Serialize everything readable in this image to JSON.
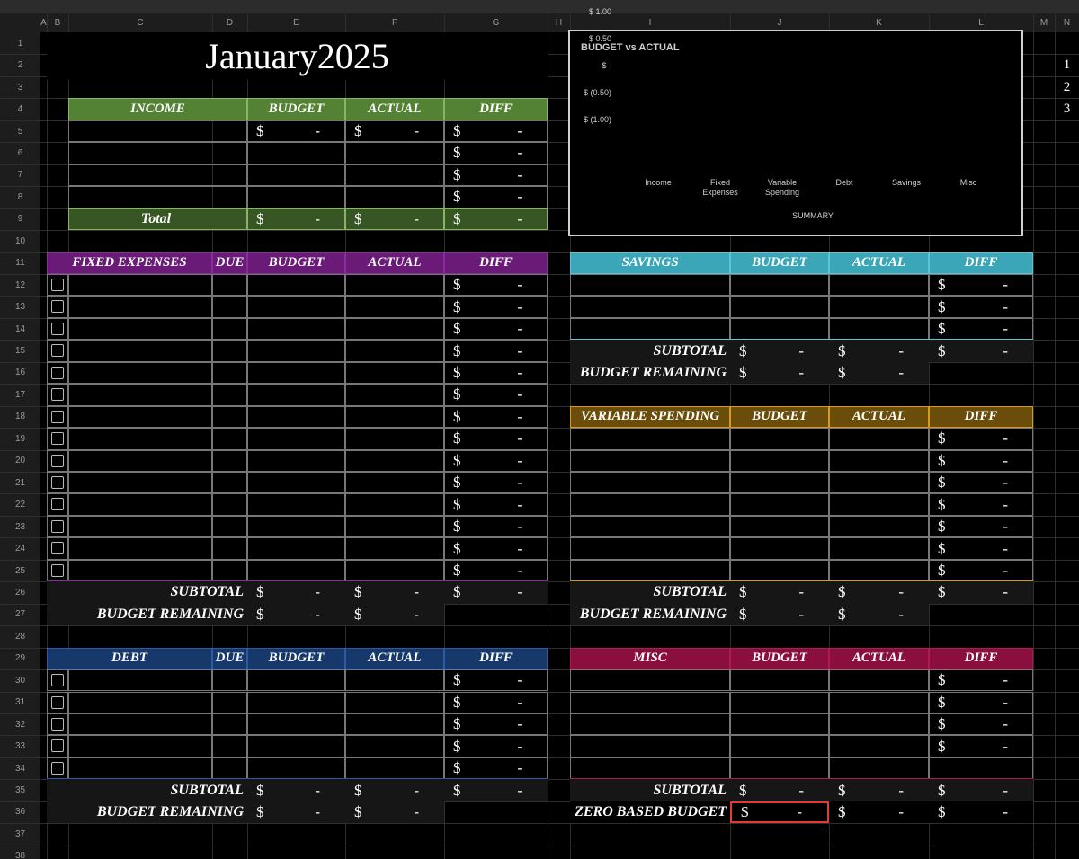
{
  "column_headers": [
    "A",
    "B",
    "C",
    "D",
    "E",
    "F",
    "G",
    "H",
    "I",
    "J",
    "K",
    "L",
    "M",
    "N"
  ],
  "row_numbers": [
    1,
    2,
    3,
    4,
    5,
    6,
    7,
    8,
    9,
    10,
    11,
    12,
    13,
    14,
    15,
    16,
    17,
    18,
    19,
    20,
    21,
    22,
    23,
    24,
    25,
    26,
    27,
    28,
    29,
    30,
    31,
    32,
    33,
    34,
    35,
    36,
    37,
    38
  ],
  "title": "January2025",
  "side_notes": [
    1,
    2,
    3
  ],
  "sections": {
    "income": {
      "header": [
        "INCOME",
        "BUDGET",
        "ACTUAL",
        "DIFF"
      ],
      "rows": [
        [
          null,
          [
            "$",
            "-"
          ],
          [
            "$",
            "-"
          ],
          [
            "$",
            "-"
          ]
        ],
        [
          null,
          null,
          null,
          [
            "$",
            "-"
          ]
        ],
        [
          null,
          null,
          null,
          [
            "$",
            "-"
          ]
        ],
        [
          null,
          null,
          null,
          [
            "$",
            "-"
          ]
        ]
      ],
      "total": {
        "label": "Total",
        "cells": [
          [
            "$",
            "-"
          ],
          [
            "$",
            "-"
          ],
          [
            "$",
            "-"
          ]
        ]
      }
    },
    "fixed": {
      "header": [
        "FIXED EXPENSES",
        "DUE",
        "BUDGET",
        "ACTUAL",
        "DIFF"
      ],
      "rows": [
        [
          null,
          null,
          null,
          null,
          [
            "$",
            "-"
          ]
        ],
        [
          null,
          null,
          null,
          null,
          [
            "$",
            "-"
          ]
        ],
        [
          null,
          null,
          null,
          null,
          [
            "$",
            "-"
          ]
        ],
        [
          null,
          null,
          null,
          null,
          [
            "$",
            "-"
          ]
        ],
        [
          null,
          null,
          null,
          null,
          [
            "$",
            "-"
          ]
        ],
        [
          null,
          null,
          null,
          null,
          [
            "$",
            "-"
          ]
        ],
        [
          null,
          null,
          null,
          null,
          [
            "$",
            "-"
          ]
        ],
        [
          null,
          null,
          null,
          null,
          [
            "$",
            "-"
          ]
        ],
        [
          null,
          null,
          null,
          null,
          [
            "$",
            "-"
          ]
        ],
        [
          null,
          null,
          null,
          null,
          [
            "$",
            "-"
          ]
        ],
        [
          null,
          null,
          null,
          null,
          [
            "$",
            "-"
          ]
        ],
        [
          null,
          null,
          null,
          null,
          [
            "$",
            "-"
          ]
        ],
        [
          null,
          null,
          null,
          null,
          [
            "$",
            "-"
          ]
        ],
        [
          null,
          null,
          null,
          null,
          [
            "$",
            "-"
          ]
        ]
      ],
      "subtotal": {
        "label": "SUBTOTAL",
        "cells": [
          [
            "$",
            "-"
          ],
          [
            "$",
            "-"
          ],
          [
            "$",
            "-"
          ]
        ]
      },
      "remaining": {
        "label": "BUDGET REMAINING",
        "cells": [
          [
            "$",
            "-"
          ],
          [
            "$",
            "-"
          ]
        ]
      }
    },
    "debt": {
      "header": [
        "DEBT",
        "DUE",
        "BUDGET",
        "ACTUAL",
        "DIFF"
      ],
      "rows": [
        [
          null,
          null,
          null,
          null,
          [
            "$",
            "-"
          ]
        ],
        [
          null,
          null,
          null,
          null,
          [
            "$",
            "-"
          ]
        ],
        [
          null,
          null,
          null,
          null,
          [
            "$",
            "-"
          ]
        ],
        [
          null,
          null,
          null,
          null,
          [
            "$",
            "-"
          ]
        ],
        [
          null,
          null,
          null,
          null,
          [
            "$",
            "-"
          ]
        ]
      ],
      "subtotal": {
        "label": "SUBTOTAL",
        "cells": [
          [
            "$",
            "-"
          ],
          [
            "$",
            "-"
          ],
          [
            "$",
            "-"
          ]
        ]
      },
      "remaining": {
        "label": "BUDGET REMAINING",
        "cells": [
          [
            "$",
            "-"
          ],
          [
            "$",
            "-"
          ]
        ]
      }
    },
    "savings": {
      "header": [
        "SAVINGS",
        "BUDGET",
        "ACTUAL",
        "DIFF"
      ],
      "rows": [
        [
          null,
          null,
          null,
          [
            "$",
            "-"
          ]
        ],
        [
          null,
          null,
          null,
          [
            "$",
            "-"
          ]
        ],
        [
          null,
          null,
          null,
          [
            "$",
            "-"
          ]
        ]
      ],
      "subtotal": {
        "label": "SUBTOTAL",
        "cells": [
          [
            "$",
            "-"
          ],
          [
            "$",
            "-"
          ],
          [
            "$",
            "-"
          ]
        ]
      },
      "remaining": {
        "label": "BUDGET REMAINING",
        "cells": [
          [
            "$",
            "-"
          ],
          [
            "$",
            "-"
          ]
        ]
      }
    },
    "variable": {
      "header": [
        "VARIABLE SPENDING",
        "BUDGET",
        "ACTUAL",
        "DIFF"
      ],
      "rows": [
        [
          null,
          null,
          null,
          [
            "$",
            "-"
          ]
        ],
        [
          null,
          null,
          null,
          [
            "$",
            "-"
          ]
        ],
        [
          null,
          null,
          null,
          [
            "$",
            "-"
          ]
        ],
        [
          null,
          null,
          null,
          [
            "$",
            "-"
          ]
        ],
        [
          null,
          null,
          null,
          [
            "$",
            "-"
          ]
        ],
        [
          null,
          null,
          null,
          [
            "$",
            "-"
          ]
        ],
        [
          null,
          null,
          null,
          [
            "$",
            "-"
          ]
        ]
      ],
      "subtotal": {
        "label": "SUBTOTAL",
        "cells": [
          [
            "$",
            "-"
          ],
          [
            "$",
            "-"
          ],
          [
            "$",
            "-"
          ]
        ]
      },
      "remaining": {
        "label": "BUDGET REMAINING",
        "cells": [
          [
            "$",
            "-"
          ],
          [
            "$",
            "-"
          ]
        ]
      }
    },
    "misc": {
      "header": [
        "MISC",
        "BUDGET",
        "ACTUAL",
        "DIFF"
      ],
      "rows": [
        [
          null,
          null,
          null,
          [
            "$",
            "-"
          ]
        ],
        [
          null,
          null,
          null,
          [
            "$",
            "-"
          ]
        ],
        [
          null,
          null,
          null,
          [
            "$",
            "-"
          ]
        ],
        [
          null,
          null,
          null,
          [
            "$",
            "-"
          ]
        ],
        [
          null,
          null,
          null,
          null
        ]
      ],
      "subtotal": {
        "label": "SUBTOTAL",
        "cells": [
          [
            "$",
            "-"
          ],
          [
            "$",
            "-"
          ],
          [
            "$",
            "-"
          ]
        ]
      },
      "zero_based": {
        "label": "ZERO BASED BUDGET",
        "cells": [
          [
            "$",
            "-"
          ],
          [
            "$",
            "-"
          ],
          [
            "$",
            "-"
          ]
        ]
      }
    }
  },
  "chart_data": {
    "type": "bar",
    "title": "BUDGET vs ACTUAL",
    "x_label": "SUMMARY",
    "categories": [
      "Income",
      "Fixed Expenses",
      "Variable Spending",
      "Debt",
      "Savings",
      "Misc"
    ],
    "ylim": [
      -1,
      1
    ],
    "yticks": [
      {
        "value": 1,
        "label": "$ 1.00"
      },
      {
        "value": 0.5,
        "label": "$ 0.50"
      },
      {
        "value": 0,
        "label": "$ -"
      },
      {
        "value": -0.5,
        "label": "$ (0.50)"
      },
      {
        "value": -1,
        "label": "$ (1.00)"
      }
    ]
  }
}
